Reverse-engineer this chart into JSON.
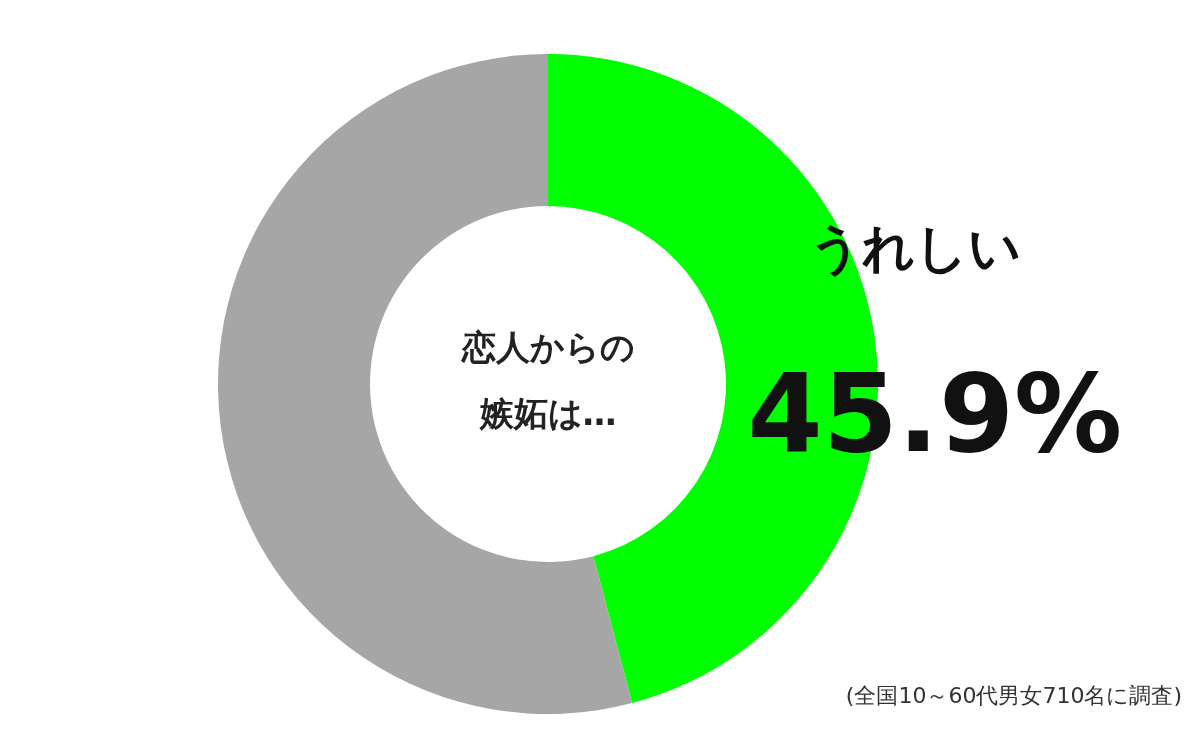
{
  "chart_data": {
    "type": "donut",
    "title": "恋人からの嫉妬は…",
    "categories": [
      "うれしい",
      null
    ],
    "values": [
      45.9,
      54.1
    ],
    "colors": [
      "#00ff00",
      "#a6a6a6"
    ],
    "value_labels": [
      "45.9%",
      null
    ],
    "annotations": [
      "(全国10～60代男女710名に調査)"
    ]
  }
}
